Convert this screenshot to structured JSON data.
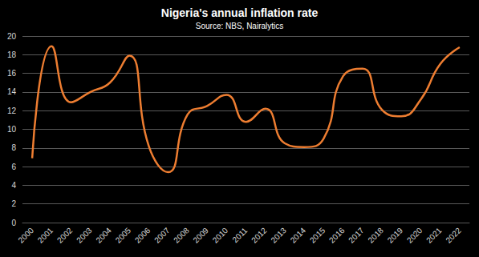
{
  "chart_data": {
    "type": "line",
    "title": "Nigeria's annual inflation rate",
    "subtitle": "Source: NBS, Nairalytics",
    "categories": [
      "2000",
      "2001",
      "2002",
      "2003",
      "2004",
      "2005",
      "2006",
      "2007",
      "2008",
      "2009",
      "2010",
      "2011",
      "2012",
      "2013",
      "2014",
      "2015",
      "2016",
      "2017",
      "2018",
      "2019",
      "2020",
      "2021",
      "2022"
    ],
    "values": [
      6.9,
      18.9,
      12.9,
      14.0,
      15.0,
      17.9,
      8.2,
      5.4,
      11.6,
      12.5,
      13.7,
      10.8,
      12.2,
      8.5,
      8.1,
      9.0,
      15.7,
      16.5,
      12.1,
      11.4,
      13.2,
      17.0,
      18.8
    ],
    "color": "#ed7d31",
    "ylim": [
      0,
      20
    ],
    "yticks": [
      0,
      2,
      4,
      6,
      8,
      10,
      12,
      14,
      16,
      18,
      20
    ],
    "grid": true,
    "marker": "none",
    "line_style": "smooth"
  }
}
